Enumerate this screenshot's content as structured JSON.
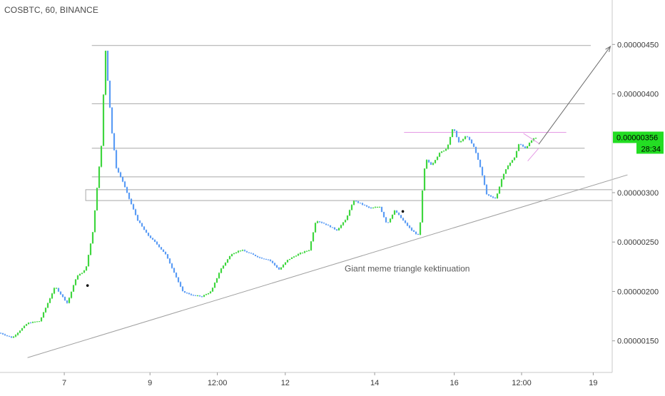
{
  "header": {
    "symbol_label": "COSBTC, 60, BINANCE"
  },
  "colors": {
    "candle_up": "#3fd63f",
    "candle_down": "#5b9cf5",
    "sr_line": "#a8a8a8",
    "trendline": "#a0a0a0",
    "triangle_line": "#e59ae5",
    "arrow": "#6b6b6b",
    "price_badge_bg": "#22dd22",
    "price_badge_text": "#000000",
    "axis_text": "#3a3a3a",
    "annotation_text": "#5a5a5a"
  },
  "chart_data": {
    "type": "candlestick",
    "title": "COSBTC, 60, BINANCE",
    "interval": "60",
    "exchange": "BINANCE",
    "ylim": [
      1.18e-06,
      4.95e-06
    ],
    "y_ticks": [
      "0.00000150",
      "0.00000200",
      "0.00000250",
      "0.00000300",
      "0.00000400",
      "0.00000450"
    ],
    "x_ticks": [
      {
        "label": "7",
        "pos": 0.105
      },
      {
        "label": "9",
        "pos": 0.245
      },
      {
        "label": "12:00",
        "pos": 0.355
      },
      {
        "label": "12",
        "pos": 0.466
      },
      {
        "label": "14",
        "pos": 0.612
      },
      {
        "label": "16",
        "pos": 0.742
      },
      {
        "label": "12:00",
        "pos": 0.852
      },
      {
        "label": "19",
        "pos": 0.969
      }
    ],
    "current_price": "0.00000356",
    "countdown": "28:34",
    "series_path": [
      [
        0.0,
        1.58e-06
      ],
      [
        0.02,
        1.53e-06
      ],
      [
        0.045,
        1.68e-06
      ],
      [
        0.065,
        1.7e-06
      ],
      [
        0.09,
        2.05e-06
      ],
      [
        0.11,
        1.88e-06
      ],
      [
        0.125,
        2.15e-06
      ],
      [
        0.14,
        2.22e-06
      ],
      [
        0.152,
        2.62e-06
      ],
      [
        0.16,
        3.15e-06
      ],
      [
        0.166,
        3.5e-06
      ],
      [
        0.172,
        4.48e-06
      ],
      [
        0.177,
        4.05e-06
      ],
      [
        0.183,
        3.6e-06
      ],
      [
        0.19,
        3.25e-06
      ],
      [
        0.2,
        3.12e-06
      ],
      [
        0.212,
        2.92e-06
      ],
      [
        0.225,
        2.72e-06
      ],
      [
        0.24,
        2.58e-06
      ],
      [
        0.256,
        2.48e-06
      ],
      [
        0.27,
        2.38e-06
      ],
      [
        0.284,
        2.2e-06
      ],
      [
        0.298,
        2e-06
      ],
      [
        0.315,
        1.96e-06
      ],
      [
        0.33,
        1.95e-06
      ],
      [
        0.345,
        2e-06
      ],
      [
        0.36,
        2.22e-06
      ],
      [
        0.378,
        2.38e-06
      ],
      [
        0.394,
        2.42e-06
      ],
      [
        0.41,
        2.38e-06
      ],
      [
        0.425,
        2.34e-06
      ],
      [
        0.44,
        2.32e-06
      ],
      [
        0.456,
        2.22e-06
      ],
      [
        0.47,
        2.32e-06
      ],
      [
        0.488,
        2.38e-06
      ],
      [
        0.505,
        2.42e-06
      ],
      [
        0.516,
        2.72e-06
      ],
      [
        0.532,
        2.68e-06
      ],
      [
        0.55,
        2.62e-06
      ],
      [
        0.564,
        2.72e-06
      ],
      [
        0.578,
        2.92e-06
      ],
      [
        0.592,
        2.88e-06
      ],
      [
        0.605,
        2.84e-06
      ],
      [
        0.62,
        2.86e-06
      ],
      [
        0.632,
        2.68e-06
      ],
      [
        0.645,
        2.82e-06
      ],
      [
        0.658,
        2.72e-06
      ],
      [
        0.672,
        2.62e-06
      ],
      [
        0.685,
        2.56e-06
      ],
      [
        0.69,
        3.02e-06
      ],
      [
        0.695,
        3.34e-06
      ],
      [
        0.705,
        3.28e-06
      ],
      [
        0.718,
        3.4e-06
      ],
      [
        0.73,
        3.45e-06
      ],
      [
        0.74,
        3.66e-06
      ],
      [
        0.75,
        3.5e-06
      ],
      [
        0.762,
        3.58e-06
      ],
      [
        0.775,
        3.45e-06
      ],
      [
        0.785,
        3.25e-06
      ],
      [
        0.795,
        2.98e-06
      ],
      [
        0.81,
        2.94e-06
      ],
      [
        0.82,
        3.15e-06
      ],
      [
        0.83,
        3.28e-06
      ],
      [
        0.84,
        3.35e-06
      ],
      [
        0.848,
        3.5e-06
      ],
      [
        0.858,
        3.45e-06
      ],
      [
        0.87,
        3.54e-06
      ],
      [
        0.877,
        3.56e-06
      ]
    ],
    "horizontal_levels": [
      {
        "price": 4.49e-06,
        "x_start": 0.15,
        "x_end": 0.965,
        "color": "sr_line"
      },
      {
        "price": 3.9e-06,
        "x_start": 0.15,
        "x_end": 0.955,
        "color": "sr_line"
      },
      {
        "price": 3.45e-06,
        "x_start": 0.15,
        "x_end": 0.955,
        "color": "sr_line"
      },
      {
        "price": 3.16e-06,
        "x_start": 0.15,
        "x_end": 0.955,
        "color": "sr_line"
      },
      {
        "price": 3.61e-06,
        "x_start": 0.66,
        "x_end": 0.925,
        "color": "triangle_line"
      }
    ],
    "zone": {
      "price_top": 3.03e-06,
      "price_bottom": 2.92e-06,
      "x_start": 0.14,
      "x_end": 1.0
    },
    "trendline": {
      "p1": [
        0.045,
        1.33e-06
      ],
      "p2": [
        1.025,
        3.18e-06
      ]
    },
    "triangle_lines": [
      {
        "p1": [
          0.855,
          3.6e-06
        ],
        "p2": [
          0.88,
          3.5e-06
        ]
      },
      {
        "p1": [
          0.862,
          3.32e-06
        ],
        "p2": [
          0.88,
          3.45e-06
        ]
      }
    ],
    "projection_arrow": {
      "p1": [
        0.88,
        3.49e-06
      ],
      "p2": [
        0.997,
        4.48e-06
      ]
    },
    "markers": [
      {
        "x": 0.143,
        "price": 2.06e-06
      },
      {
        "x": 0.658,
        "price": 2.81e-06
      }
    ],
    "annotation": {
      "text": "Giant meme triangle kektinuation",
      "x": 0.563,
      "price": 2.23e-06
    }
  }
}
